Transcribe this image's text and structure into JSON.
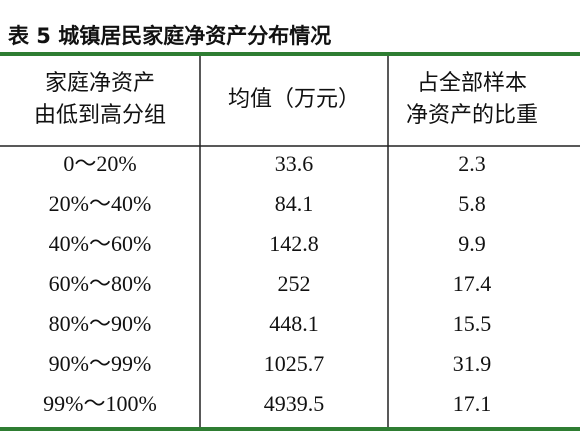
{
  "header": {
    "title": "表 5  城镇居民家庭净资产分布情况"
  },
  "table": {
    "columns": [
      [
        "家庭净资产",
        "由低到高分组"
      ],
      [
        "均值（万元）"
      ],
      [
        "占全部样本",
        "净资产的比重"
      ]
    ],
    "rows": [
      [
        "0～20%",
        "33.6",
        "2.3"
      ],
      [
        "20%～40%",
        "84.1",
        "5.8"
      ],
      [
        "40%～60%",
        "142.8",
        "9.9"
      ],
      [
        "60%～80%",
        "252",
        "17.4"
      ],
      [
        "80%～90%",
        "448.1",
        "15.5"
      ],
      [
        "90%～99%",
        "1025.7",
        "31.9"
      ],
      [
        "99%～100%",
        "4939.5",
        "17.1"
      ]
    ]
  }
}
